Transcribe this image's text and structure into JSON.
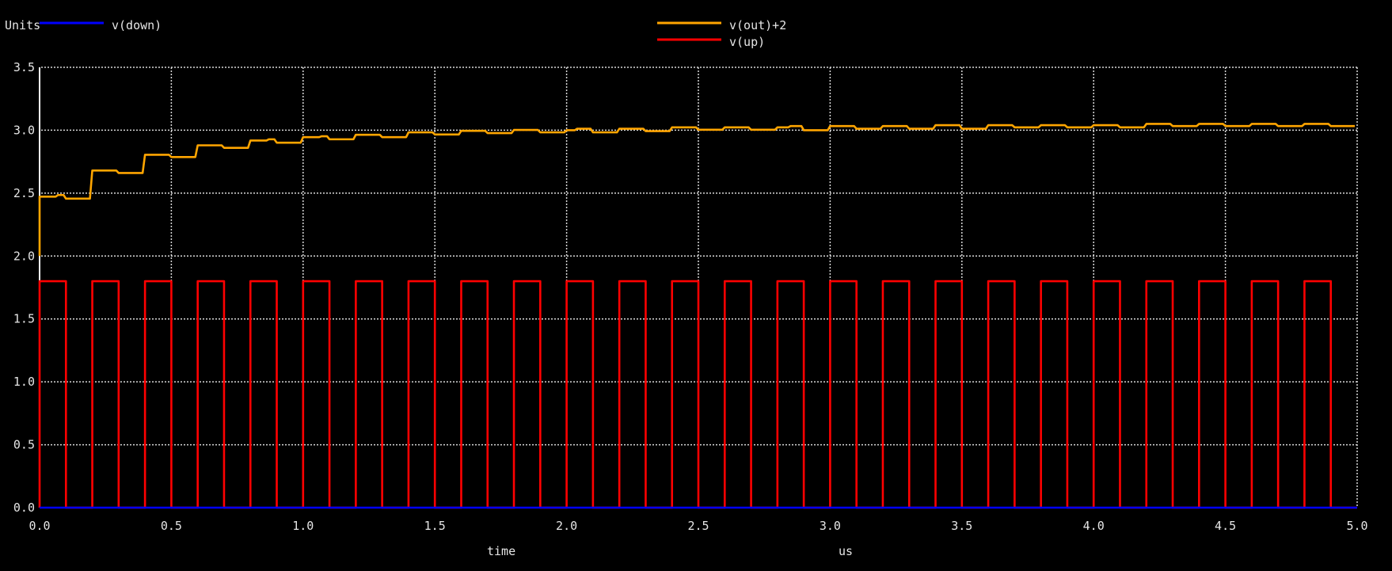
{
  "window": {
    "background": "#000000"
  },
  "chart_data": {
    "type": "line",
    "title": "",
    "ylabel": "Units",
    "xlabel": "time",
    "xunit": "us",
    "xlim": [
      0.0,
      5.0
    ],
    "ylim": [
      0.0,
      3.5
    ],
    "grid": true,
    "x_ticks": [
      "0.0",
      "0.5",
      "1.0",
      "1.5",
      "2.0",
      "2.5",
      "3.0",
      "3.5",
      "4.0",
      "4.5",
      "5.0"
    ],
    "y_ticks": [
      "0.0",
      "0.5",
      "1.0",
      "1.5",
      "2.0",
      "2.5",
      "3.0",
      "3.5"
    ],
    "legend": [
      {
        "name": "v(down)",
        "color": "#0000ff",
        "position": "top-left"
      },
      {
        "name": "v(out)+2",
        "color": "#ffa500",
        "position": "top-center"
      },
      {
        "name": "v(up)",
        "color": "#ff0000",
        "position": "top-center"
      }
    ],
    "series": [
      {
        "name": "v(down)",
        "color": "#0000ff",
        "kind": "constant",
        "value": 0.0
      },
      {
        "name": "v(up)",
        "color": "#ff0000",
        "kind": "pulse",
        "low": 0.0,
        "high": 1.8,
        "period": 0.2,
        "width": 0.1,
        "start": 0.0
      },
      {
        "name": "v(out)+2",
        "color": "#ffa500",
        "kind": "steps",
        "initial": 2.0,
        "segments": [
          [
            0.0,
            2.472
          ],
          [
            0.07,
            2.485
          ],
          [
            0.1,
            2.456
          ],
          [
            0.2,
            2.68
          ],
          [
            0.3,
            2.66
          ],
          [
            0.4,
            2.805
          ],
          [
            0.5,
            2.787
          ],
          [
            0.6,
            2.88
          ],
          [
            0.7,
            2.86
          ],
          [
            0.8,
            2.918
          ],
          [
            0.87,
            2.928
          ],
          [
            0.9,
            2.901
          ],
          [
            1.0,
            2.945
          ],
          [
            1.07,
            2.952
          ],
          [
            1.1,
            2.928
          ],
          [
            1.2,
            2.964
          ],
          [
            1.3,
            2.945
          ],
          [
            1.4,
            2.983
          ],
          [
            1.5,
            2.966
          ],
          [
            1.6,
            2.995
          ],
          [
            1.7,
            2.977
          ],
          [
            1.8,
            3.002
          ],
          [
            1.9,
            2.983
          ],
          [
            2.0,
            3.0
          ],
          [
            2.04,
            3.012
          ],
          [
            2.1,
            2.983
          ],
          [
            2.2,
            3.012
          ],
          [
            2.3,
            2.993
          ],
          [
            2.4,
            3.023
          ],
          [
            2.5,
            3.004
          ],
          [
            2.6,
            3.023
          ],
          [
            2.7,
            3.004
          ],
          [
            2.8,
            3.023
          ],
          [
            2.85,
            3.033
          ],
          [
            2.9,
            3.0
          ],
          [
            3.0,
            3.033
          ],
          [
            3.1,
            3.012
          ],
          [
            3.2,
            3.033
          ],
          [
            3.3,
            3.012
          ],
          [
            3.4,
            3.04
          ],
          [
            3.5,
            3.012
          ],
          [
            3.6,
            3.04
          ],
          [
            3.7,
            3.023
          ],
          [
            3.8,
            3.04
          ],
          [
            3.9,
            3.023
          ],
          [
            4.0,
            3.04
          ],
          [
            4.1,
            3.023
          ],
          [
            4.2,
            3.05
          ],
          [
            4.3,
            3.033
          ],
          [
            4.4,
            3.05
          ],
          [
            4.5,
            3.033
          ],
          [
            4.6,
            3.05
          ],
          [
            4.7,
            3.033
          ],
          [
            4.8,
            3.05
          ],
          [
            4.9,
            3.033
          ]
        ],
        "end": 5.0
      }
    ]
  }
}
